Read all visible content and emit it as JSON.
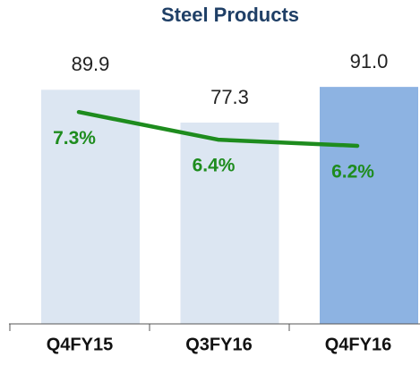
{
  "chart_data": {
    "type": "bar",
    "title": "Steel Products",
    "categories": [
      "Q4FY15",
      "Q3FY16",
      "Q4FY16"
    ],
    "series": [
      {
        "type": "bar",
        "colors": [
          "#dce6f2",
          "#dce6f2",
          "#8db3e2"
        ],
        "values": [
          89.9,
          77.3,
          91.0
        ],
        "value_labels": [
          "89.9",
          "77.3",
          "91.0"
        ]
      },
      {
        "type": "line",
        "axis": "y2",
        "color": "#1e8c1e",
        "values": [
          7.3,
          6.4,
          6.2
        ],
        "value_labels": [
          "7.3%",
          "6.4%",
          "6.2%"
        ]
      }
    ],
    "ylim": [
      0,
      112
    ],
    "y2lim": [
      0.4,
      9.9
    ]
  }
}
